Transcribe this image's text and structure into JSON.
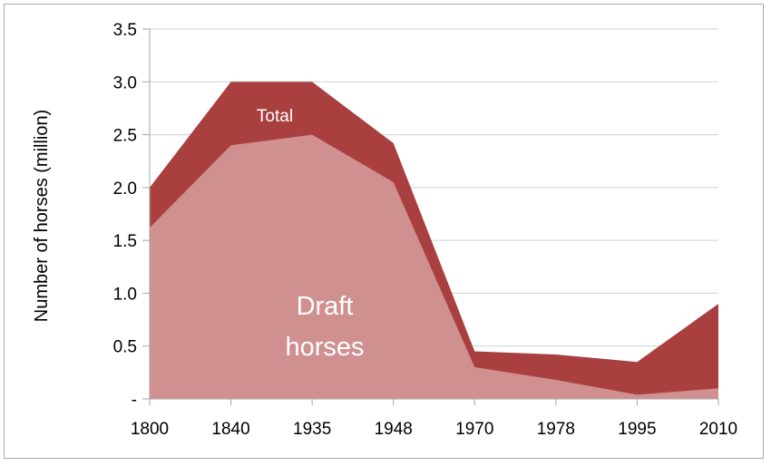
{
  "chart_data": {
    "type": "area",
    "categories": [
      "1800",
      "1840",
      "1935",
      "1948",
      "1970",
      "1978",
      "1995",
      "2010"
    ],
    "series": [
      {
        "name": "Total",
        "values": [
          2.0,
          3.0,
          3.0,
          2.42,
          0.45,
          0.42,
          0.35,
          0.9
        ],
        "color": "#a9403f"
      },
      {
        "name": "Draft horses",
        "values": [
          1.62,
          2.4,
          2.5,
          2.05,
          0.3,
          0.18,
          0.04,
          0.1
        ],
        "color": "#d09090"
      }
    ],
    "ylabel": "Number of horses (million)",
    "yticks": [
      "-",
      "0.5",
      "1.0",
      "1.5",
      "2.0",
      "2.5",
      "3.0",
      "3.5"
    ],
    "ylim": [
      0,
      3.5
    ],
    "grid": true,
    "annotations": {
      "total": "Total",
      "draft_line1": "Draft",
      "draft_line2": "horses"
    },
    "colors": {
      "total": "#a9403f",
      "draft": "#d09090",
      "grid": "#d0d0d0",
      "axis": "#a6a6a6"
    }
  }
}
